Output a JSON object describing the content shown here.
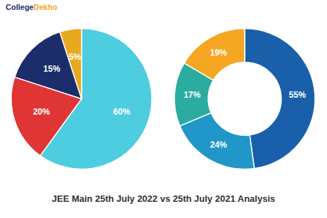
{
  "title": "JEE Main 25th July 2022 vs 25th July 2021 Analysis",
  "annotations": [
    "College",
    "Dekho"
  ],
  "chart_data": [
    {
      "type": "pie",
      "values": [
        60,
        20,
        15,
        5
      ],
      "value_labels": [
        "60%",
        "20%",
        "15%",
        "5%"
      ],
      "colors": [
        "#4ecde0",
        "#e03535",
        "#1c2d6b",
        "#e8a820"
      ],
      "data_labels": true
    },
    {
      "type": "donut",
      "values": [
        55,
        24,
        17,
        19
      ],
      "value_labels": [
        "55%",
        "24%",
        "17%",
        "19%"
      ],
      "colors": [
        "#1a5faa",
        "#2196c8",
        "#2aada0",
        "#f5a623"
      ],
      "data_labels": true
    }
  ]
}
